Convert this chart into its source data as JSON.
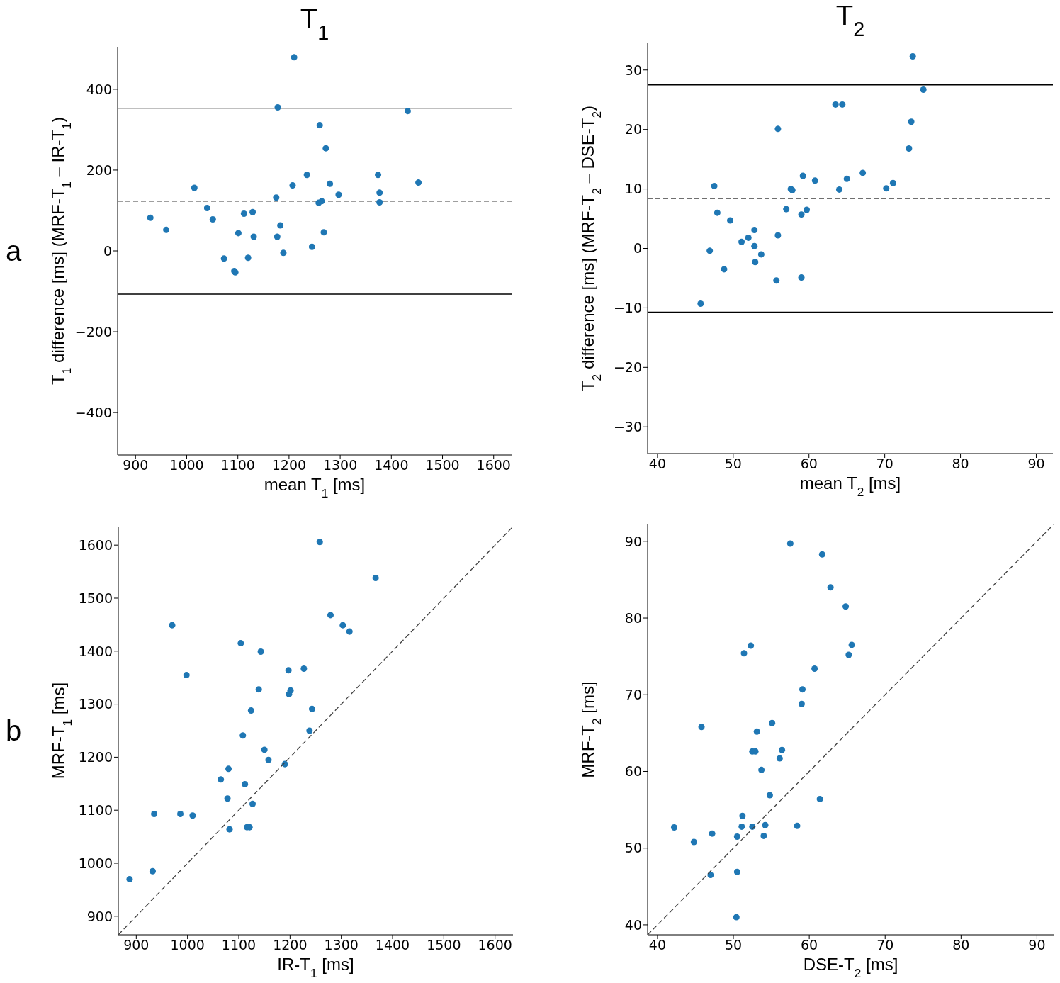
{
  "chart_data": [
    {
      "type": "scatter",
      "title": "T$_{1}$",
      "xlabel": "mean T$_{1}$ [ms]",
      "ylabel": "T$_{1}$ difference [ms] (MRF-T$_{1}$ – IR-T$_{1}$)",
      "annotations": [
        "a"
      ],
      "marker": "circle",
      "xlim": [
        865,
        1635
      ],
      "xticks": [
        900,
        1000,
        1100,
        1200,
        1300,
        1400,
        1500,
        1600
      ],
      "ylim": [
        -505,
        505
      ],
      "yticks": [
        {
          "value": -400,
          "label": "−400"
        },
        {
          "value": -200,
          "label": "−200"
        },
        0,
        200,
        400
      ],
      "ref_lines": [
        {
          "axis": "y",
          "value": 353,
          "color": "#000000",
          "line_style": "solid"
        },
        {
          "axis": "y",
          "value": 123,
          "color": "#404040",
          "line_style": "dashed"
        },
        {
          "axis": "y",
          "value": -107,
          "color": "#000000",
          "line_style": "solid"
        }
      ],
      "series": [
        {
          "type": "scatter",
          "color": "#1f77b4",
          "x": [
            929,
            960,
            1015,
            1040,
            1051,
            1073,
            1093,
            1095,
            1101,
            1112,
            1120,
            1129,
            1131,
            1175,
            1178,
            1177,
            1183,
            1189,
            1207,
            1210,
            1235,
            1245,
            1258,
            1264,
            1260,
            1268,
            1272,
            1280,
            1297,
            1374,
            1377,
            1377,
            1432,
            1453
          ],
          "values": [
            82,
            52,
            156,
            106,
            78,
            -19,
            -50,
            -53,
            44,
            92,
            -17,
            96,
            35,
            132,
            355,
            35,
            63,
            -5,
            162,
            479,
            188,
            10,
            119,
            123,
            311,
            46,
            254,
            166,
            139,
            188,
            144,
            120,
            346,
            169
          ]
        }
      ]
    },
    {
      "type": "scatter",
      "title": "T$_{2}$",
      "xlabel": "mean T$_{2}$ [ms]",
      "ylabel": "T$_{2}$ difference [ms] (MRF-T$_{2}$ – DSE-T$_{2}$)",
      "marker": "circle",
      "xlim": [
        38.7,
        92.2
      ],
      "xticks": [
        40,
        50,
        60,
        70,
        80,
        90
      ],
      "ylim": [
        -34.5,
        34.5
      ],
      "yticks": [
        {
          "value": -30,
          "label": "−30"
        },
        {
          "value": -20,
          "label": "−20"
        },
        {
          "value": -10,
          "label": "−10"
        },
        0,
        10,
        20,
        30
      ],
      "ref_lines": [
        {
          "axis": "y",
          "value": 27.5,
          "color": "#000000",
          "line_style": "solid"
        },
        {
          "axis": "y",
          "value": 8.4,
          "color": "#404040",
          "line_style": "dashed"
        },
        {
          "axis": "y",
          "value": -10.7,
          "color": "#000000",
          "line_style": "solid"
        }
      ],
      "series": [
        {
          "type": "scatter",
          "color": "#1f77b4",
          "x": [
            73.7,
            75.1,
            63.5,
            64.4,
            55.9,
            73.5,
            73.2,
            47.5,
            59.2,
            60.8,
            65.0,
            67.1,
            57.6,
            57.8,
            64.0,
            70.2,
            71.1,
            47.9,
            49.6,
            57.0,
            59.7,
            59.0,
            52.8,
            55.9,
            52.0,
            51.1,
            52.8,
            53.7,
            46.9,
            52.9,
            48.8,
            55.7,
            59.0,
            45.7
          ],
          "values": [
            32.3,
            26.7,
            24.2,
            24.2,
            20.1,
            21.3,
            16.8,
            10.5,
            12.2,
            11.4,
            11.7,
            12.7,
            10.0,
            9.8,
            9.9,
            10.1,
            11.0,
            6.0,
            4.7,
            6.6,
            6.5,
            5.7,
            3.1,
            2.2,
            1.8,
            1.1,
            0.4,
            -1.0,
            -0.4,
            -2.3,
            -3.5,
            -5.4,
            -4.9,
            -9.3
          ]
        }
      ]
    },
    {
      "type": "scatter",
      "xlabel": "IR-T$_{1}$ [ms]",
      "ylabel": "MRF-T$_{1}$ [ms]",
      "annotations": [
        "b"
      ],
      "marker": "circle",
      "xlim": [
        865,
        1635
      ],
      "xticks": [
        900,
        1000,
        1100,
        1200,
        1300,
        1400,
        1500,
        1600
      ],
      "ylim": [
        865,
        1635
      ],
      "yticks": [
        900,
        1000,
        1100,
        1200,
        1300,
        1400,
        1500,
        1600
      ],
      "series": [
        {
          "type": "scatter",
          "color": "#1f77b4",
          "x": [
            1258,
            1367,
            970,
            1279,
            1303,
            1316,
            1104,
            1143,
            998,
            1197,
            1227,
            1139,
            1201,
            1198,
            1124,
            1243,
            1108,
            1238,
            1150,
            1158,
            1190,
            1080,
            1065,
            1112,
            1078,
            1127,
            935,
            986,
            1010,
            1082,
            1116,
            1121,
            932,
            887
          ],
          "values": [
            1606,
            1538,
            1449,
            1468,
            1449,
            1437,
            1415,
            1399,
            1355,
            1364,
            1367,
            1328,
            1326,
            1319,
            1288,
            1291,
            1241,
            1250,
            1214,
            1195,
            1187,
            1178,
            1158,
            1149,
            1122,
            1112,
            1093,
            1093,
            1090,
            1064,
            1068,
            1068,
            985,
            970
          ]
        },
        {
          "type": "line",
          "color": "#404040",
          "line_style": "dashed",
          "marker": "none",
          "x": [
            865,
            1635
          ],
          "values": [
            865,
            1635
          ]
        }
      ]
    },
    {
      "type": "scatter",
      "xlabel": "DSE-T$_{2}$ [ms]",
      "ylabel": "MRF-T$_{2}$ [ms]",
      "marker": "circle",
      "xlim": [
        38.7,
        92.2
      ],
      "xticks": [
        40,
        50,
        60,
        70,
        80,
        90
      ],
      "ylim": [
        38.7,
        92.2
      ],
      "yticks": [
        40,
        50,
        60,
        70,
        80,
        90
      ],
      "series": [
        {
          "type": "scatter",
          "color": "#1f77b4",
          "x": [
            57.5,
            61.7,
            62.8,
            64.8,
            65.6,
            65.2,
            52.3,
            51.4,
            60.7,
            59.1,
            59.0,
            55.1,
            45.8,
            53.1,
            52.5,
            52.9,
            56.4,
            56.1,
            53.7,
            54.8,
            61.4,
            51.2,
            42.2,
            51.1,
            52.5,
            54.2,
            58.4,
            47.2,
            44.8,
            50.5,
            54.0,
            47.0,
            50.5,
            50.4
          ],
          "values": [
            89.7,
            88.3,
            84.0,
            81.5,
            76.5,
            75.2,
            76.4,
            75.4,
            73.4,
            70.7,
            68.8,
            66.3,
            65.8,
            65.2,
            62.6,
            62.6,
            62.8,
            61.7,
            60.2,
            56.9,
            56.4,
            54.2,
            52.7,
            52.8,
            52.8,
            53.0,
            52.9,
            51.9,
            50.8,
            51.5,
            51.6,
            46.5,
            46.9,
            41.0
          ]
        },
        {
          "type": "line",
          "color": "#404040",
          "line_style": "dashed",
          "marker": "none",
          "x": [
            38.7,
            92.2
          ],
          "values": [
            38.7,
            92.2
          ]
        }
      ]
    }
  ]
}
